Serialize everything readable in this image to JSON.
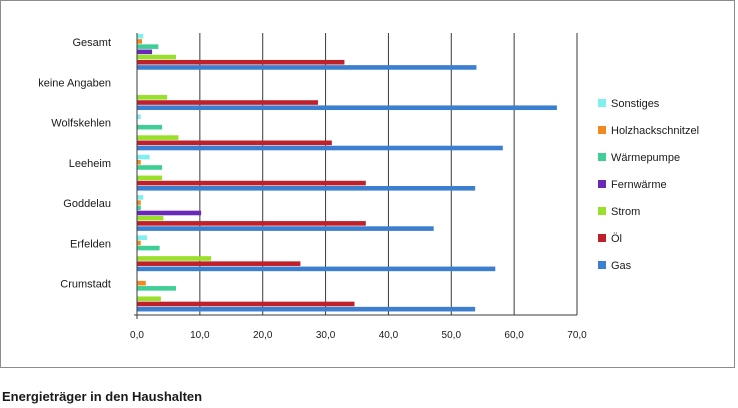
{
  "caption": "Energieträger in den Haushalten",
  "chart_data": {
    "type": "bar",
    "orientation": "horizontal",
    "title": "",
    "xlabel": "",
    "ylabel": "",
    "xlim": [
      0,
      70
    ],
    "x_ticks": [
      0,
      10,
      20,
      30,
      40,
      50,
      60,
      70
    ],
    "x_tick_labels": [
      "0,0",
      "10,0",
      "20,0",
      "30,0",
      "40,0",
      "50,0",
      "60,0",
      "70,0"
    ],
    "grid": "vertical",
    "legend_position": "right",
    "categories": [
      "Gesamt",
      "keine Angaben",
      "Wolfskehlen",
      "Leeheim",
      "Goddelau",
      "Erfelden",
      "Crumstadt"
    ],
    "series": [
      {
        "name": "Gas",
        "color": "#3c7fd0",
        "values": [
          54.0,
          66.8,
          58.2,
          53.8,
          47.2,
          57.0,
          53.8
        ]
      },
      {
        "name": "Öl",
        "color": "#c0202a",
        "values": [
          33.0,
          28.8,
          31.0,
          36.4,
          36.4,
          26.0,
          34.6
        ]
      },
      {
        "name": "Strom",
        "color": "#98e02a",
        "values": [
          6.2,
          4.8,
          6.6,
          4.0,
          4.2,
          11.8,
          3.8
        ]
      },
      {
        "name": "Fernwärme",
        "color": "#6a28b8",
        "values": [
          2.4,
          0.0,
          0.0,
          0.0,
          10.2,
          0.0,
          0.0
        ]
      },
      {
        "name": "Wärmepumpe",
        "color": "#3fcf96",
        "values": [
          3.4,
          0.0,
          4.0,
          4.0,
          0.6,
          3.6,
          6.2
        ]
      },
      {
        "name": "Holzhackschnitzel",
        "color": "#f08a1e",
        "values": [
          0.8,
          0.0,
          0.0,
          0.6,
          0.6,
          0.6,
          1.4
        ]
      },
      {
        "name": "Sonstiges",
        "color": "#7ff0f0",
        "values": [
          1.0,
          0.0,
          0.6,
          2.0,
          1.0,
          1.6,
          0.0
        ]
      }
    ]
  }
}
